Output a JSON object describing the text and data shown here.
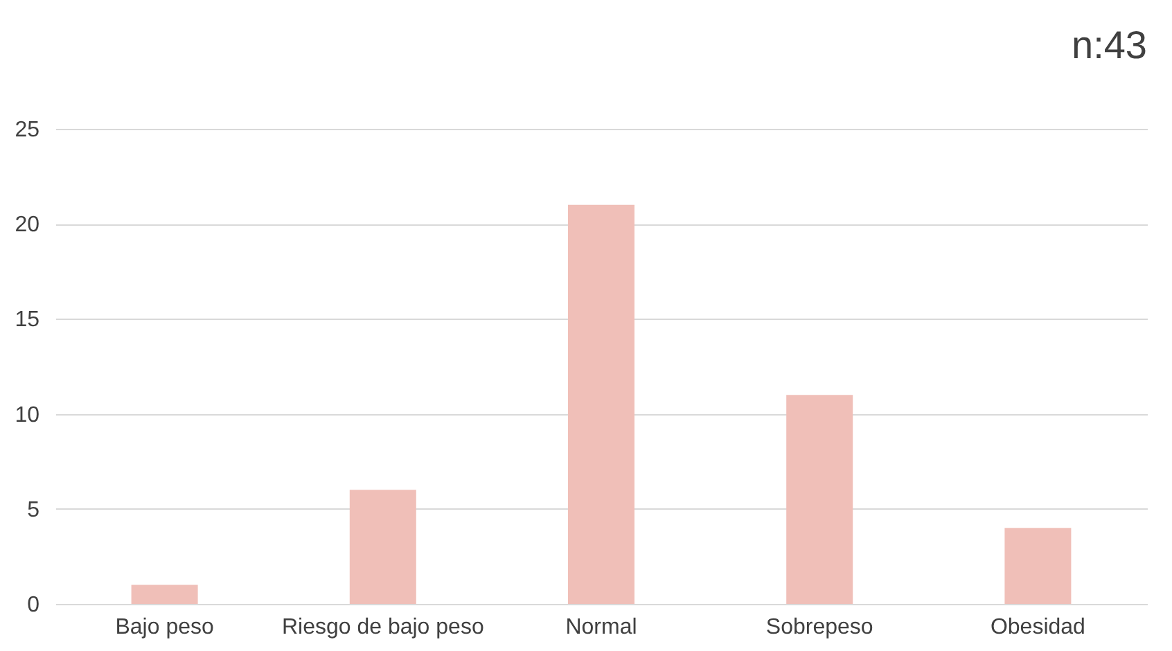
{
  "chart_data": {
    "type": "bar",
    "categories": [
      "Bajo peso",
      "Riesgo de bajo peso",
      "Normal",
      "Sobrepeso",
      "Obesidad"
    ],
    "values": [
      1,
      6,
      21,
      11,
      4
    ],
    "color": "#f0bfb8",
    "ylim": [
      0,
      25
    ],
    "yticks": [
      0,
      5,
      10,
      15,
      20,
      25
    ],
    "grid": "y",
    "annotations": [
      "n:43"
    ]
  }
}
